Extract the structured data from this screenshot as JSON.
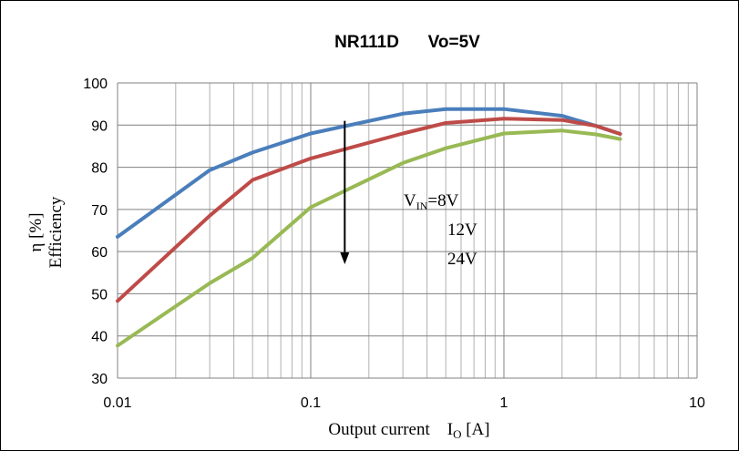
{
  "chart_data": {
    "type": "line",
    "title": "NR111D      Vo=5V",
    "xlabel": {
      "main": "Output current    I",
      "sub": "O",
      "unit": " [A]"
    },
    "ylabel": {
      "line1": "η [%]",
      "line2": "Efficiency"
    },
    "xscale": "log",
    "xlim": [
      0.01,
      10
    ],
    "ylim": [
      30,
      100
    ],
    "xticks": [
      "0.01",
      "0.1",
      "1",
      "10"
    ],
    "yticks": [
      "30",
      "40",
      "50",
      "60",
      "70",
      "80",
      "90",
      "100"
    ],
    "grid": true,
    "series": [
      {
        "color": "#4a7ebb",
        "x": [
          0.01,
          0.03,
          0.05,
          0.1,
          0.3,
          0.5,
          1,
          2,
          3,
          4
        ],
        "y": [
          63.5,
          79.3,
          83.5,
          88,
          92.7,
          93.8,
          93.8,
          92.2,
          89.8,
          87.9
        ]
      },
      {
        "color": "#be4b48",
        "x": [
          0.01,
          0.03,
          0.05,
          0.1,
          0.3,
          0.5,
          1,
          2,
          3,
          4
        ],
        "y": [
          48.3,
          68.5,
          77,
          82.1,
          88,
          90.5,
          91.5,
          91.2,
          89.8,
          87.9
        ]
      },
      {
        "color": "#98b954",
        "x": [
          0.01,
          0.03,
          0.05,
          0.1,
          0.3,
          0.5,
          1,
          2,
          3,
          4
        ],
        "y": [
          37.7,
          52.5,
          58.5,
          70.5,
          81,
          84.5,
          88,
          88.7,
          87.8,
          86.7
        ]
      }
    ],
    "annotations": {
      "vin_prefix": "V",
      "vin_sub": "IN",
      "vin_suffix": "=8V",
      "v12": "12V",
      "v24": "24V",
      "arrow": {
        "x": 0.15,
        "y_from": 91,
        "y_to": 57
      }
    }
  }
}
